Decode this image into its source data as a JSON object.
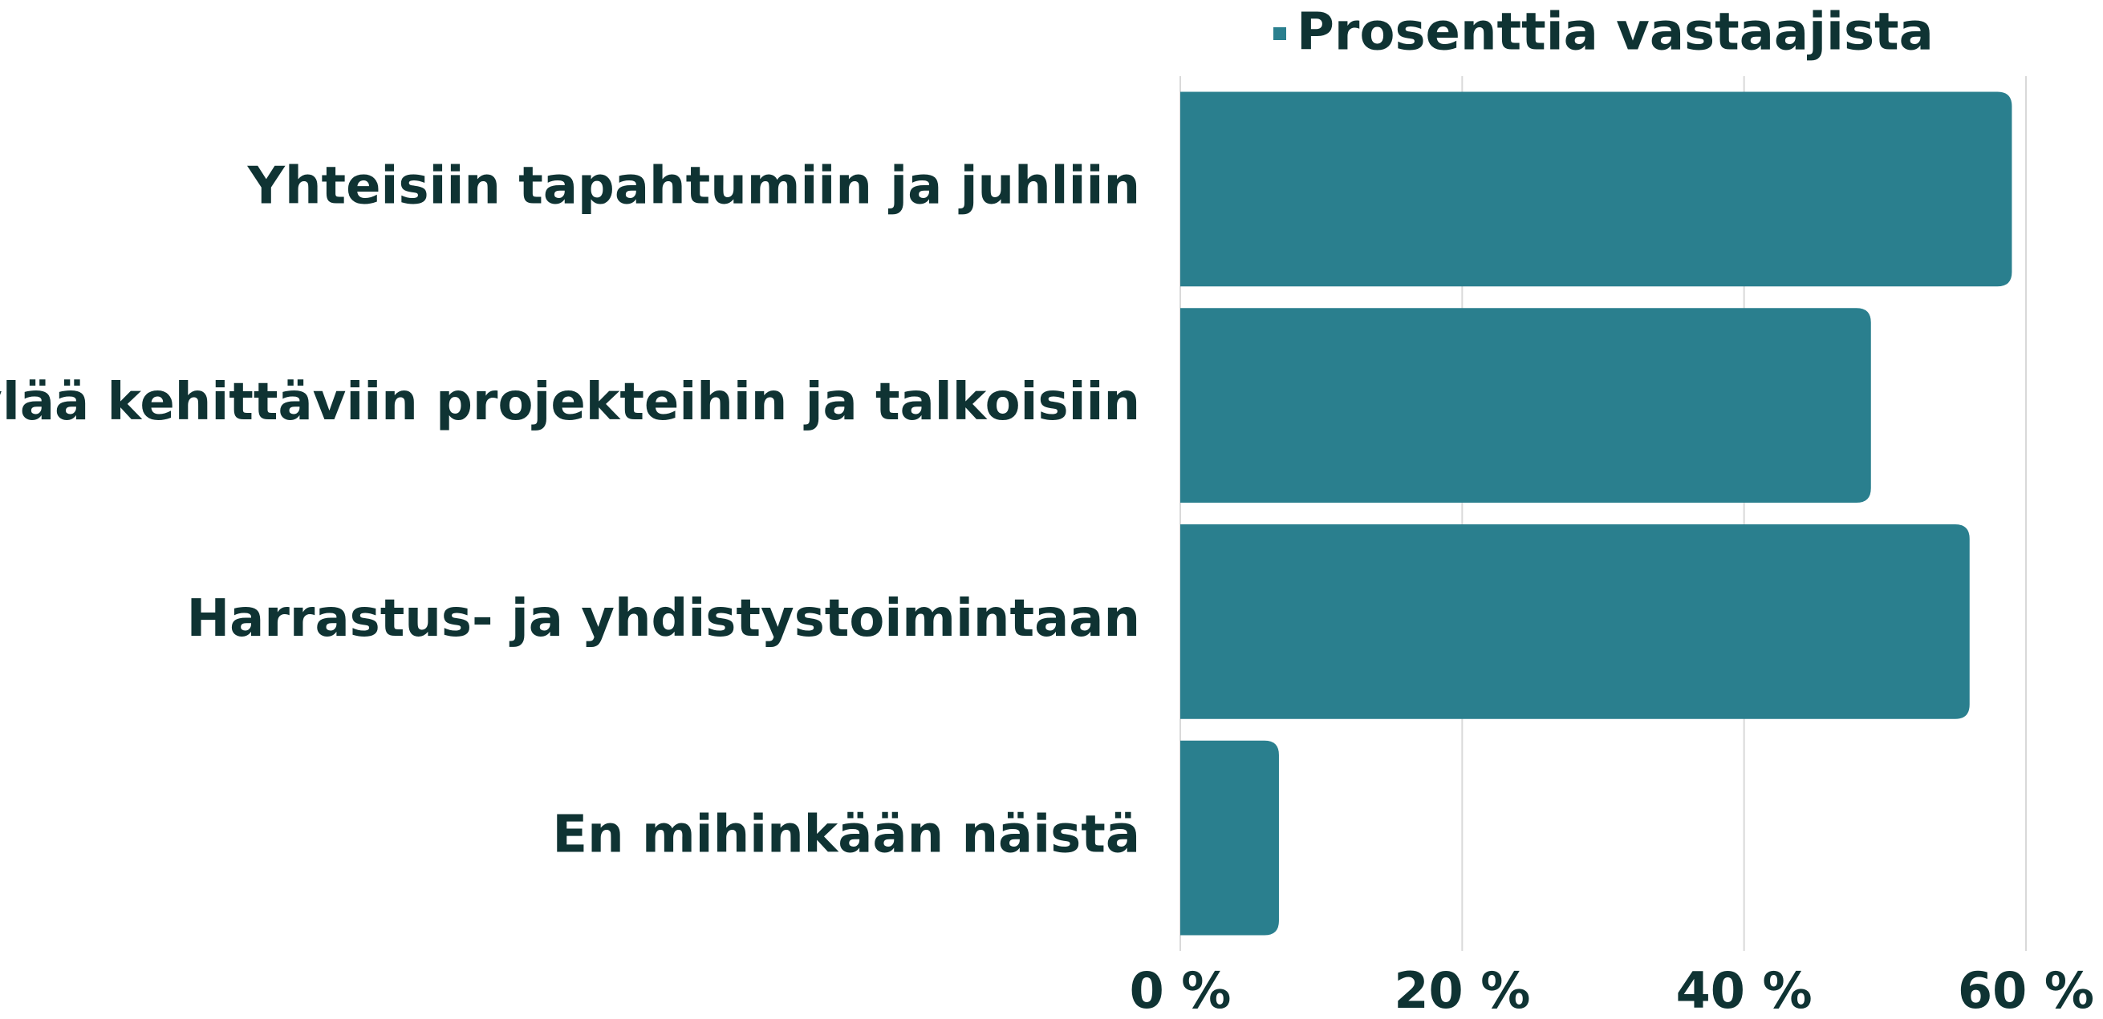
{
  "chart_data": {
    "type": "bar",
    "orientation": "horizontal",
    "categories": [
      "Yhteisiin tapahtumiin ja juhliin",
      "Kylää kehittäviin projekteihin ja talkoisiin",
      "Harrastus- ja yhdistystoimintaan",
      "En mihinkään näistä"
    ],
    "series": [
      {
        "name": "Prosenttia vastaajista",
        "color": "#2a7f8e",
        "values": [
          59,
          49,
          56,
          7
        ]
      }
    ],
    "xlim": [
      0,
      60
    ],
    "xticks": [
      {
        "value": 0,
        "label": "0 %"
      },
      {
        "value": 20,
        "label": "20 %"
      },
      {
        "value": 40,
        "label": "40 %"
      },
      {
        "value": 60,
        "label": "60 %"
      }
    ],
    "grid": true,
    "legend": "top"
  }
}
